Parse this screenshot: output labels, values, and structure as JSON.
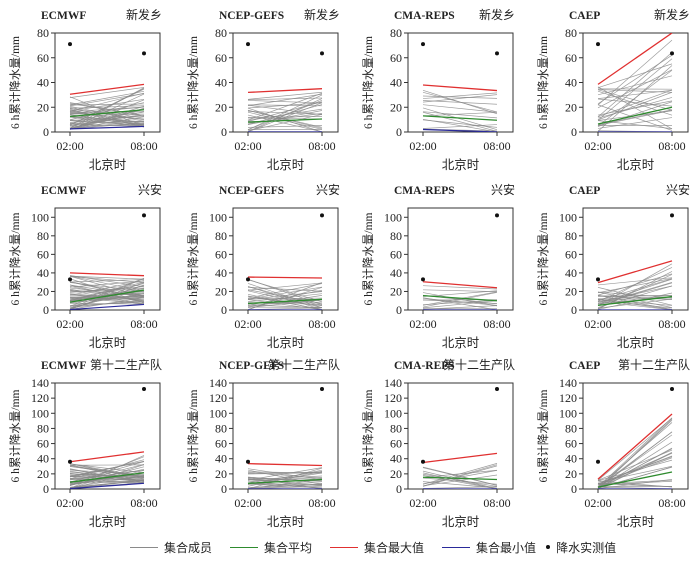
{
  "chart_data": {
    "type": "line",
    "layout": "3 rows x 4 columns",
    "x_categories": [
      "02:00",
      "08:00"
    ],
    "xlabel": "北京时",
    "ylabel": "6 h累计降水量/mm",
    "grid": false,
    "legend": {
      "position": "bottom",
      "entries": [
        {
          "key": "members",
          "label": "集合成员",
          "color": "#8a8a8a",
          "kind": "line"
        },
        {
          "key": "mean",
          "label": "集合平均",
          "color": "#2e8b2e",
          "kind": "line"
        },
        {
          "key": "max",
          "label": "集合最大值",
          "color": "#e03030",
          "kind": "line"
        },
        {
          "key": "min",
          "label": "集合最小值",
          "color": "#2a2a9a",
          "kind": "line"
        },
        {
          "key": "obs",
          "label": "降水实测值",
          "color": "#111111",
          "kind": "dot"
        }
      ]
    },
    "panels": [
      {
        "model": "ECMWF",
        "station": "新发乡",
        "ylim": [
          0,
          80
        ],
        "yticks": [
          0,
          20,
          40,
          60,
          80
        ],
        "obs": [
          71,
          63.5
        ],
        "max": [
          30.5,
          38.5
        ],
        "mean": [
          12.5,
          18
        ],
        "min": [
          2.5,
          4.5
        ],
        "member_count": 50,
        "member_range_0200": [
          2,
          30
        ],
        "member_range_0800": [
          4,
          38
        ]
      },
      {
        "model": "NCEP-GEFS",
        "station": "新发乡",
        "ylim": [
          0,
          80
        ],
        "yticks": [
          0,
          20,
          40,
          60,
          80
        ],
        "obs": [
          71,
          63.5
        ],
        "max": [
          32,
          35
        ],
        "mean": [
          8,
          10.5
        ],
        "min": [
          0,
          0
        ],
        "member_count": 30,
        "member_range_0200": [
          0,
          32
        ],
        "member_range_0800": [
          0,
          35
        ]
      },
      {
        "model": "CMA-REPS",
        "station": "新发乡",
        "ylim": [
          0,
          80
        ],
        "yticks": [
          0,
          20,
          40,
          60,
          80
        ],
        "obs": [
          71,
          63.5
        ],
        "max": [
          38,
          33.5
        ],
        "mean": [
          13,
          9.5
        ],
        "min": [
          2,
          0
        ],
        "member_count": 15,
        "member_range_0200": [
          2,
          38
        ],
        "member_range_0800": [
          0,
          33.5
        ]
      },
      {
        "model": "CAEP",
        "station": "新发乡",
        "ylim": [
          0,
          80
        ],
        "yticks": [
          0,
          20,
          40,
          60,
          80
        ],
        "obs": [
          71,
          63.5
        ],
        "max": [
          38.5,
          80
        ],
        "mean": [
          6.5,
          20
        ],
        "min": [
          0,
          0
        ],
        "member_count": 30,
        "member_range_0200": [
          0,
          38.5
        ],
        "member_range_0800": [
          0,
          80
        ]
      },
      {
        "model": "ECMWF",
        "station": "兴安",
        "ylim": [
          0,
          110
        ],
        "yticks": [
          0,
          20,
          40,
          60,
          80,
          100
        ],
        "obs": [
          33,
          102
        ],
        "max": [
          40,
          37
        ],
        "mean": [
          8.5,
          21.5
        ],
        "min": [
          0.5,
          6
        ],
        "member_count": 50,
        "member_range_0200": [
          0.5,
          40
        ],
        "member_range_0800": [
          6,
          37
        ]
      },
      {
        "model": "NCEP-GEFS",
        "station": "兴安",
        "ylim": [
          0,
          110
        ],
        "yticks": [
          0,
          20,
          40,
          60,
          80,
          100
        ],
        "obs": [
          33,
          102
        ],
        "max": [
          35.5,
          34.5
        ],
        "mean": [
          7,
          11.5
        ],
        "min": [
          0,
          0
        ],
        "member_count": 30,
        "member_range_0200": [
          0,
          35.5
        ],
        "member_range_0800": [
          0,
          34.5
        ]
      },
      {
        "model": "CMA-REPS",
        "station": "兴安",
        "ylim": [
          0,
          110
        ],
        "yticks": [
          0,
          20,
          40,
          60,
          80,
          100
        ],
        "obs": [
          33,
          102
        ],
        "max": [
          30.5,
          24
        ],
        "mean": [
          15.5,
          10
        ],
        "min": [
          0,
          0
        ],
        "member_count": 15,
        "member_range_0200": [
          0,
          30.5
        ],
        "member_range_0800": [
          0,
          24
        ]
      },
      {
        "model": "CAEP",
        "station": "兴安",
        "ylim": [
          0,
          110
        ],
        "yticks": [
          0,
          20,
          40,
          60,
          80,
          100
        ],
        "obs": [
          33,
          102
        ],
        "max": [
          29.5,
          53
        ],
        "mean": [
          5,
          14.5
        ],
        "min": [
          0,
          0
        ],
        "member_count": 30,
        "member_range_0200": [
          0,
          29.5
        ],
        "member_range_0800": [
          0,
          53
        ]
      },
      {
        "model": "ECMWF",
        "station": "第十二生产队",
        "ylim": [
          0,
          140
        ],
        "yticks": [
          0,
          20,
          40,
          60,
          80,
          100,
          120,
          140
        ],
        "obs": [
          36,
          132
        ],
        "max": [
          36,
          49
        ],
        "mean": [
          9,
          21.5
        ],
        "min": [
          0.5,
          7.5
        ],
        "member_count": 50,
        "member_range_0200": [
          0.5,
          36
        ],
        "member_range_0800": [
          7.5,
          49
        ]
      },
      {
        "model": "NCEP-GEFS",
        "station": "第十二生产队",
        "ylim": [
          0,
          140
        ],
        "yticks": [
          0,
          20,
          40,
          60,
          80,
          100,
          120,
          140
        ],
        "obs": [
          36,
          132
        ],
        "max": [
          33.5,
          31
        ],
        "mean": [
          7.5,
          12.5
        ],
        "min": [
          0,
          0
        ],
        "member_count": 30,
        "member_range_0200": [
          0,
          33.5
        ],
        "member_range_0800": [
          0,
          31
        ]
      },
      {
        "model": "CMA-REPS",
        "station": "第十二生产队",
        "ylim": [
          0,
          140
        ],
        "yticks": [
          0,
          20,
          40,
          60,
          80,
          100,
          120,
          140
        ],
        "obs": [
          36,
          132
        ],
        "max": [
          35,
          47
        ],
        "mean": [
          15.5,
          12.5
        ],
        "min": [
          0,
          0
        ],
        "member_count": 15,
        "member_range_0200": [
          0,
          35
        ],
        "member_range_0800": [
          0,
          47
        ]
      },
      {
        "model": "CAEP",
        "station": "第十二生产队",
        "ylim": [
          0,
          140
        ],
        "yticks": [
          0,
          20,
          40,
          60,
          80,
          100,
          120,
          140
        ],
        "obs": [
          36,
          132
        ],
        "max": [
          13,
          99
        ],
        "mean": [
          2.5,
          22.5
        ],
        "min": [
          0,
          0
        ],
        "member_count": 30,
        "member_range_0200": [
          0,
          13
        ],
        "member_range_0800": [
          0,
          99
        ]
      }
    ]
  }
}
